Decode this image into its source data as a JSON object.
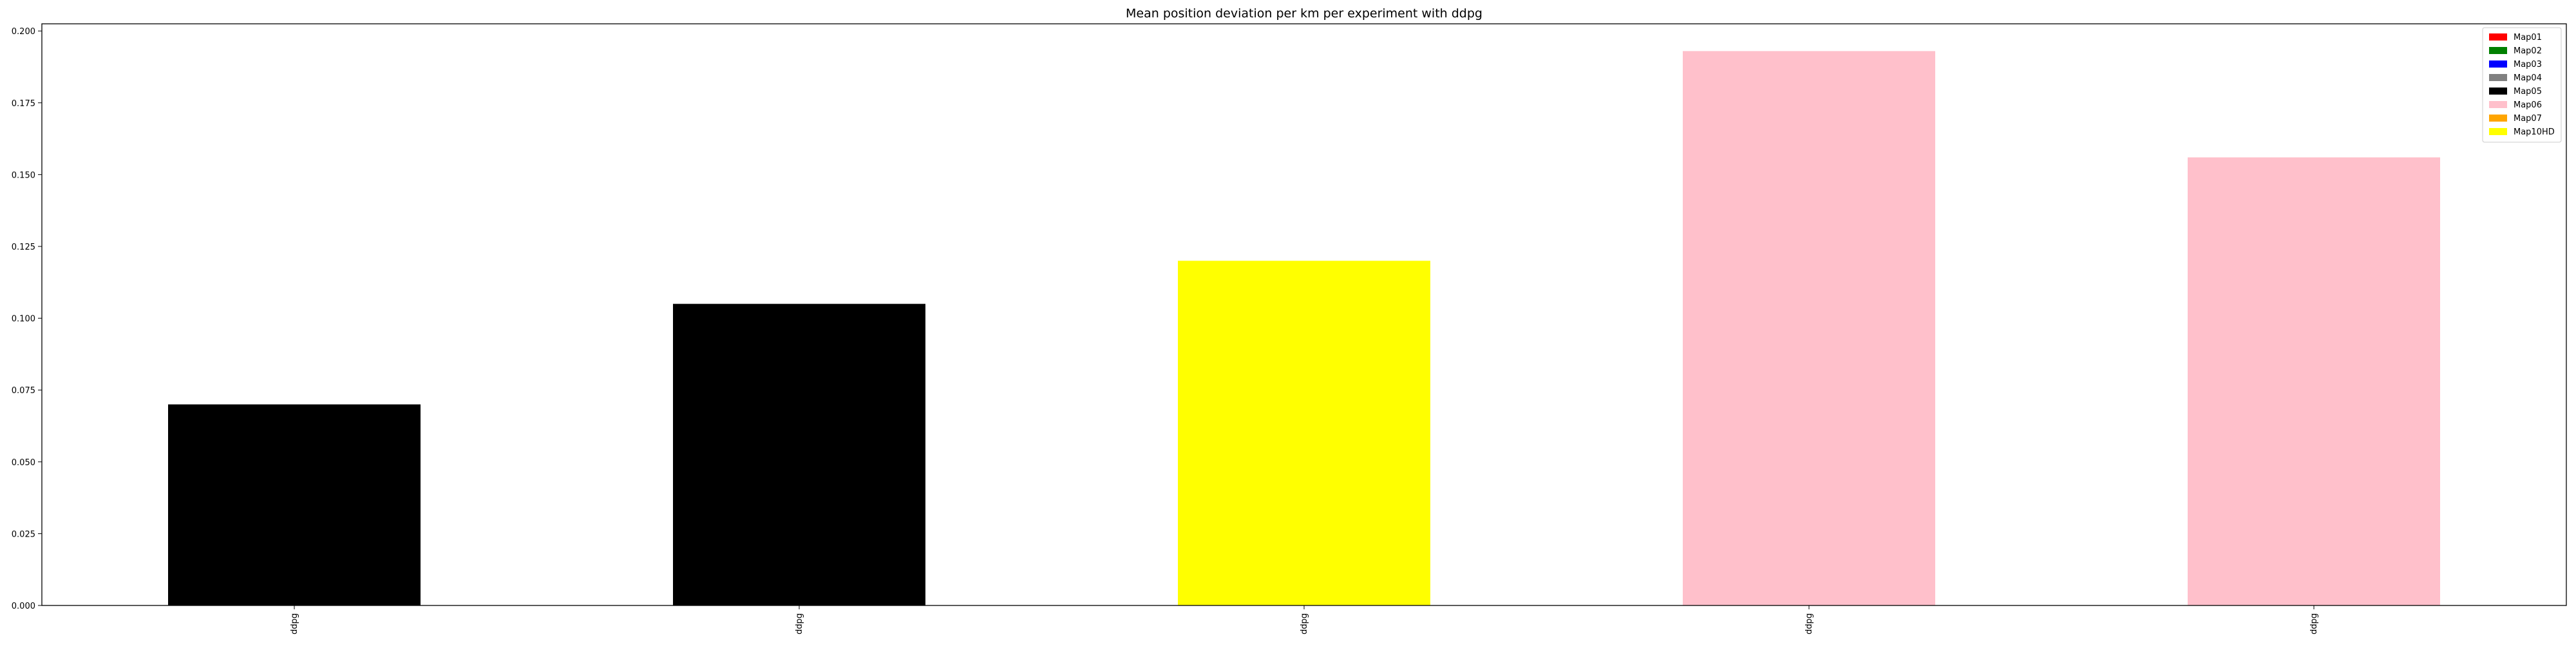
{
  "chart_data": {
    "type": "bar",
    "title": "Mean position deviation per km per experiment with ddpg",
    "xlabel": "",
    "ylabel": "",
    "categories": [
      "ddpg",
      "ddpg",
      "ddpg",
      "ddpg",
      "ddpg"
    ],
    "values": [
      0.07,
      0.105,
      0.12,
      0.193,
      0.156
    ],
    "bar_colors": [
      "#000000",
      "#000000",
      "#ffff00",
      "#ffc0cb",
      "#ffc0cb"
    ],
    "ylim": [
      0,
      0.2025
    ],
    "yticks": [
      0.0,
      0.025,
      0.05,
      0.075,
      0.1,
      0.125,
      0.15,
      0.175,
      0.2
    ],
    "ytick_labels": [
      "0.000",
      "0.025",
      "0.050",
      "0.075",
      "0.100",
      "0.125",
      "0.150",
      "0.175",
      "0.200"
    ],
    "grid": false,
    "legend_position": "top-right",
    "legend": [
      {
        "label": "Map01",
        "color": "#ff0000"
      },
      {
        "label": "Map02",
        "color": "#008000"
      },
      {
        "label": "Map03",
        "color": "#0000ff"
      },
      {
        "label": "Map04",
        "color": "#808080"
      },
      {
        "label": "Map05",
        "color": "#000000"
      },
      {
        "label": "Map06",
        "color": "#ffc0cb"
      },
      {
        "label": "Map07",
        "color": "#ffa500"
      },
      {
        "label": "Map10HD",
        "color": "#ffff00"
      }
    ]
  }
}
